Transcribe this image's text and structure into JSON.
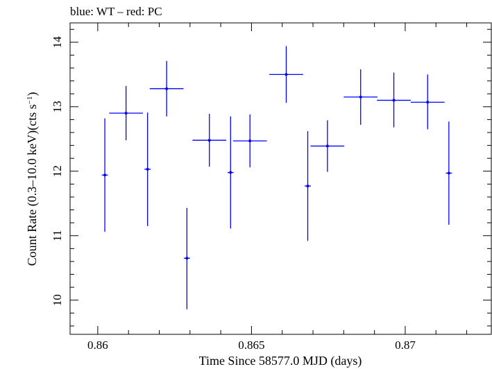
{
  "chart_data": {
    "type": "scatter",
    "title": "blue: WT – red: PC",
    "xlabel": "Time Since 58577.0 MJD (days)",
    "ylabel": "Count Rate (0.3–10.0 keV)(cts s",
    "ylabel_sup": "−1",
    "ylabel_end": ")",
    "xlim": [
      0.8591,
      0.8728
    ],
    "ylim": [
      9.47,
      14.3
    ],
    "x_ticks": [
      {
        "value": 0.86,
        "label": "0.86"
      },
      {
        "value": 0.865,
        "label": "0.865"
      },
      {
        "value": 0.87,
        "label": "0.87"
      }
    ],
    "y_ticks": [
      {
        "value": 10,
        "label": "10"
      },
      {
        "value": 11,
        "label": "11"
      },
      {
        "value": 12,
        "label": "12"
      },
      {
        "value": 13,
        "label": "13"
      },
      {
        "value": 14,
        "label": "14"
      }
    ],
    "grid": false,
    "series": [
      {
        "color": "#0000ff",
        "points": [
          {
            "x": 0.86023,
            "y": 11.94,
            "xerr": 0.0001,
            "ylo": 11.06,
            "yhi": 12.82
          },
          {
            "x": 0.86092,
            "y": 12.9,
            "xerr": 0.00055,
            "ylo": 12.48,
            "yhi": 13.32
          },
          {
            "x": 0.86162,
            "y": 12.03,
            "xerr": 0.0001,
            "ylo": 11.15,
            "yhi": 12.91
          },
          {
            "x": 0.86224,
            "y": 13.28,
            "xerr": 0.00055,
            "ylo": 12.85,
            "yhi": 13.71
          },
          {
            "x": 0.8629,
            "y": 10.65,
            "xerr": 0.0001,
            "ylo": 9.86,
            "yhi": 11.43
          },
          {
            "x": 0.86363,
            "y": 12.48,
            "xerr": 0.00055,
            "ylo": 12.07,
            "yhi": 12.89
          },
          {
            "x": 0.86432,
            "y": 11.98,
            "xerr": 0.0001,
            "ylo": 11.11,
            "yhi": 12.85
          },
          {
            "x": 0.86495,
            "y": 12.47,
            "xerr": 0.00055,
            "ylo": 12.06,
            "yhi": 12.88
          },
          {
            "x": 0.86613,
            "y": 13.5,
            "xerr": 0.00055,
            "ylo": 13.06,
            "yhi": 13.94
          },
          {
            "x": 0.86683,
            "y": 11.77,
            "xerr": 0.0001,
            "ylo": 10.92,
            "yhi": 12.62
          },
          {
            "x": 0.86747,
            "y": 12.39,
            "xerr": 0.00055,
            "ylo": 11.99,
            "yhi": 12.79
          },
          {
            "x": 0.86855,
            "y": 13.15,
            "xerr": 0.00055,
            "ylo": 12.72,
            "yhi": 13.58
          },
          {
            "x": 0.86963,
            "y": 13.1,
            "xerr": 0.00055,
            "ylo": 12.68,
            "yhi": 13.53
          },
          {
            "x": 0.87073,
            "y": 13.07,
            "xerr": 0.00055,
            "ylo": 12.65,
            "yhi": 13.5
          },
          {
            "x": 0.87142,
            "y": 11.97,
            "xerr": 0.0001,
            "ylo": 11.17,
            "yhi": 12.77
          }
        ]
      }
    ]
  }
}
